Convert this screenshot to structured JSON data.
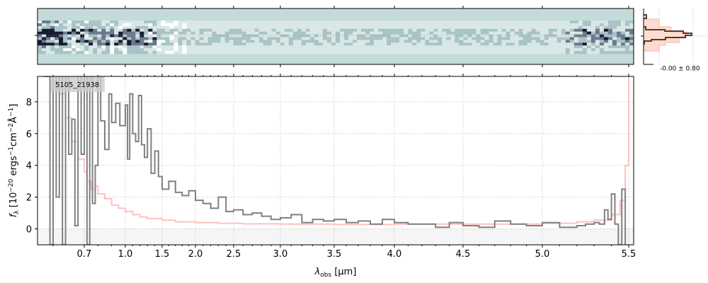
{
  "chart_data": [
    {
      "type": "heatmap",
      "panel": "2d-spectrum",
      "colors": {
        "background": "#c3dbd9",
        "dark": "#1a1a2e",
        "light": "#ffffff"
      }
    },
    {
      "type": "line",
      "panel": "1d-spectrum",
      "label": "5105_21938",
      "xlabel": "λ_obs [μm]",
      "ylabel": "f_λ [10^-20 ergs^-1 cm^-2 Å^-1]",
      "xlabel_parts": {
        "main": "λ",
        "sub": "obs",
        "unit": " [μm]"
      },
      "ylabel_parts": {
        "pre": "f",
        "sub": "λ",
        "a": " [10",
        "sup1": "−20",
        "b": " ergs",
        "sup2": "−1",
        "c": "cm",
        "sup3": "−2",
        "d": "Å",
        "sup4": "−1",
        "e": "]"
      },
      "xticks": [
        0.7,
        1.0,
        1.5,
        2.0,
        2.5,
        3.0,
        3.5,
        4.0,
        4.5,
        5.0,
        5.5
      ],
      "xtick_labels": [
        "0.7",
        "1.0",
        "1.5",
        "2.0",
        "2.5",
        "3.0",
        "3.5",
        "4.0",
        "4.5",
        "5.0",
        "5.5"
      ],
      "yticks": [
        0,
        2,
        4,
        6,
        8
      ],
      "ytick_labels": [
        "0",
        "2",
        "4",
        "6",
        "8"
      ],
      "ylim": [
        -1,
        9.6
      ],
      "xlim": [
        0.55,
        5.53
      ],
      "grid": true,
      "series": [
        {
          "color": "#808080",
          "x": [
            0.57,
            0.59,
            0.6,
            0.61,
            0.62,
            0.63,
            0.64,
            0.65,
            0.66,
            0.67,
            0.68,
            0.69,
            0.7,
            0.72,
            0.74,
            0.76,
            0.78,
            0.8,
            0.82,
            0.85,
            0.88,
            0.9,
            0.93,
            0.96,
            1.0,
            1.03,
            1.06,
            1.1,
            1.14,
            1.18,
            1.22,
            1.26,
            1.3,
            1.35,
            1.4,
            1.45,
            1.5,
            1.6,
            1.7,
            1.8,
            1.9,
            2.0,
            2.1,
            2.2,
            2.3,
            2.4,
            2.5,
            2.6,
            2.7,
            2.8,
            2.9,
            3.0,
            3.1,
            3.2,
            3.3,
            3.4,
            3.5,
            3.6,
            3.7,
            3.8,
            3.9,
            4.0,
            4.1,
            4.2,
            4.3,
            4.4,
            4.5,
            4.6,
            4.7,
            4.8,
            4.9,
            5.0,
            5.1,
            5.2,
            5.25,
            5.3,
            5.33,
            5.36,
            5.38,
            5.4,
            5.42,
            5.44,
            5.46,
            5.48
          ],
          "y": [
            9.6,
            -1,
            9.6,
            2.0,
            9.6,
            -1,
            9.6,
            4.7,
            6.9,
            0.2,
            9.6,
            4.7,
            9.6,
            -1,
            9.6,
            1.6,
            4.0,
            9.6,
            6.8,
            5.0,
            8.5,
            6.7,
            7.9,
            6.5,
            7.8,
            4.4,
            8.5,
            6.0,
            5.5,
            8.4,
            5.3,
            4.5,
            6.3,
            3.5,
            4.9,
            3.3,
            2.5,
            3.0,
            2.3,
            2.1,
            2.4,
            1.8,
            1.6,
            1.3,
            2.0,
            1.1,
            1.2,
            0.9,
            1.0,
            0.8,
            0.6,
            0.7,
            0.9,
            0.4,
            0.6,
            0.5,
            0.6,
            0.4,
            0.5,
            0.3,
            0.6,
            0.4,
            0.3,
            0.3,
            0.1,
            0.4,
            0.2,
            0.1,
            0.5,
            0.3,
            0.2,
            0.4,
            0.1,
            0.2,
            0.3,
            0.4,
            0.3,
            1.2,
            0.6,
            2.2,
            0.3,
            -1,
            2.5,
            -1
          ]
        },
        {
          "color": "#ffc0c0",
          "x": [
            0.57,
            0.6,
            0.62,
            0.64,
            0.66,
            0.68,
            0.7,
            0.72,
            0.75,
            0.78,
            0.8,
            0.85,
            0.9,
            0.95,
            1.0,
            1.1,
            1.2,
            1.3,
            1.5,
            1.7,
            2.0,
            2.3,
            2.6,
            3.0,
            3.5,
            4.0,
            4.5,
            5.0,
            5.2,
            5.3,
            5.4,
            5.45,
            5.48,
            5.5
          ],
          "y": [
            9.6,
            9.6,
            8.5,
            7.0,
            5.5,
            4.4,
            3.6,
            3.0,
            2.5,
            2.7,
            2.2,
            1.9,
            1.5,
            1.3,
            1.1,
            0.9,
            0.75,
            0.65,
            0.55,
            0.45,
            0.4,
            0.35,
            0.32,
            0.3,
            0.28,
            0.3,
            0.3,
            0.35,
            0.45,
            0.55,
            0.9,
            1.8,
            4.0,
            9.6
          ]
        }
      ]
    },
    {
      "type": "bar",
      "panel": "residual-histogram",
      "annotation": "-0.00 ± 0.80",
      "colors": {
        "data": "#5a3a2e",
        "model": "#fddbd0"
      }
    }
  ]
}
